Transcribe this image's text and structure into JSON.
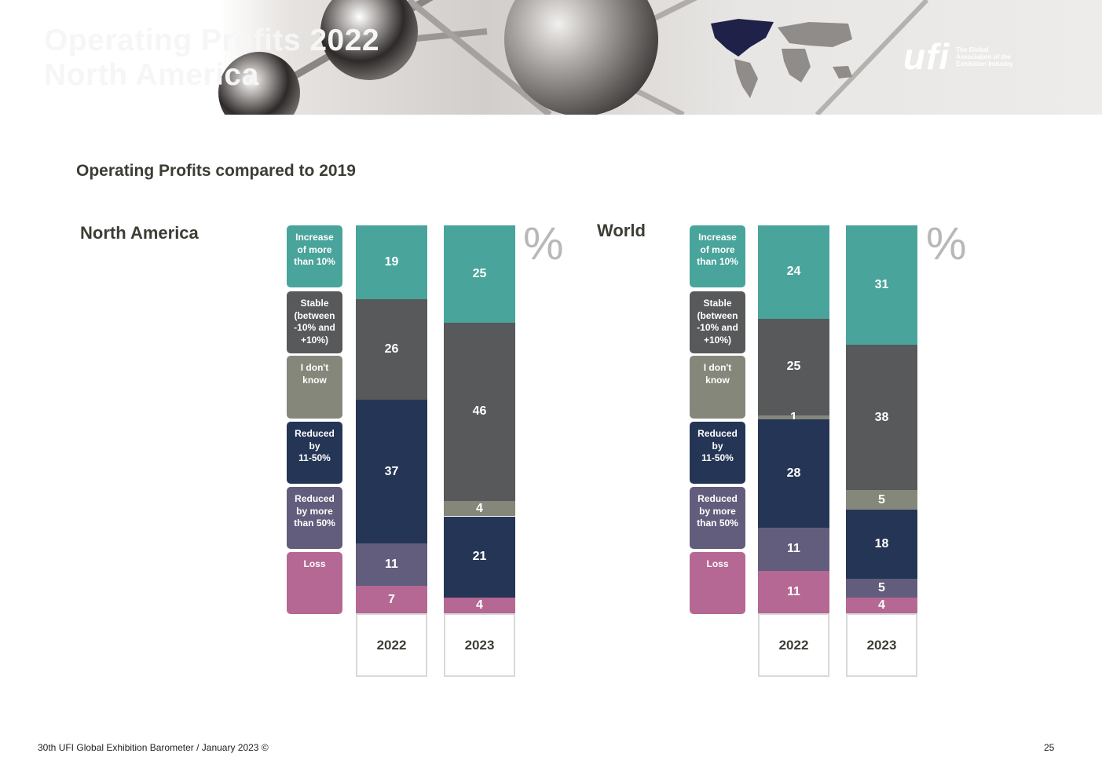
{
  "header": {
    "title": "Operating Profits 2022\nNorth America",
    "logo_mark": "ufi",
    "logo_tagline": "The Global\nAssociation of the\nExhibition Industry"
  },
  "subtitle": "Operating Profits compared to 2019",
  "percent_sign": "%",
  "legend": [
    {
      "label": "Increase\nof more\nthan 10%",
      "color": "#49a49c"
    },
    {
      "label": "Stable\n(between\n-10% and\n+10%)",
      "color": "#57595a"
    },
    {
      "label": "I don't\nknow",
      "color": "#84877a"
    },
    {
      "label": "Reduced\nby\n11-50%",
      "color": "#253555"
    },
    {
      "label": "Reduced\nby more\nthan 50%",
      "color": "#625d7c"
    },
    {
      "label": "Loss",
      "color": "#b46893"
    }
  ],
  "chart_data": [
    {
      "type": "bar",
      "stacked": true,
      "title": "North America",
      "categories": [
        "2022",
        "2023"
      ],
      "series": [
        {
          "name": "Increase of more than 10%",
          "values": [
            19,
            25
          ]
        },
        {
          "name": "Stable (between -10% and +10%)",
          "values": [
            26,
            46
          ]
        },
        {
          "name": "I don't know",
          "values": [
            0,
            4
          ]
        },
        {
          "name": "Reduced by 11-50%",
          "values": [
            37,
            21
          ]
        },
        {
          "name": "Reduced by more than 50%",
          "values": [
            11,
            0
          ]
        },
        {
          "name": "Loss",
          "values": [
            7,
            4
          ]
        }
      ],
      "ylabel": "%"
    },
    {
      "type": "bar",
      "stacked": true,
      "title": "World",
      "categories": [
        "2022",
        "2023"
      ],
      "series": [
        {
          "name": "Increase of more than 10%",
          "values": [
            24,
            31
          ]
        },
        {
          "name": "Stable (between -10% and +10%)",
          "values": [
            25,
            38
          ]
        },
        {
          "name": "I don't know",
          "values": [
            1,
            5
          ]
        },
        {
          "name": "Reduced by 11-50%",
          "values": [
            28,
            18
          ]
        },
        {
          "name": "Reduced by more than 50%",
          "values": [
            11,
            5
          ]
        },
        {
          "name": "Loss",
          "values": [
            11,
            4
          ]
        }
      ],
      "ylabel": "%"
    }
  ],
  "footer": {
    "left": "30th UFI Global Exhibition Barometer / January 2023 ©",
    "page_number": "25"
  }
}
